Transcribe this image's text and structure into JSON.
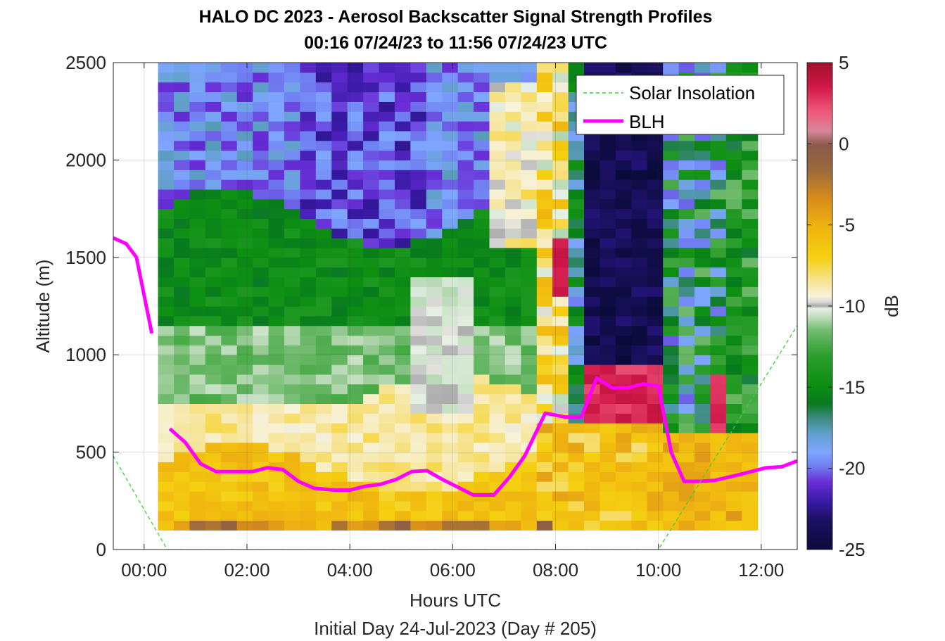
{
  "chart_data": {
    "type": "heatmap",
    "title": "HALO DC 2023 - Aerosol Backscatter Signal Strength Profiles",
    "subtitle": "00:16 07/24/23 to 11:56 07/24/23  UTC",
    "xlabel": "Hours UTC",
    "ylabel": "Altitude (m)",
    "footer": "Initial Day 24-Jul-2023 (Day # 205)",
    "xlim": [
      -0.6,
      12.7
    ],
    "ylim": [
      0,
      2500
    ],
    "x_ticks": [
      0,
      2,
      4,
      6,
      8,
      10,
      12
    ],
    "x_tick_labels": [
      "00:00",
      "02:00",
      "04:00",
      "06:00",
      "08:00",
      "10:00",
      "12:00"
    ],
    "y_ticks": [
      0,
      500,
      1000,
      1500,
      2000,
      2500
    ],
    "y_tick_labels": [
      "0",
      "500",
      "1000",
      "1500",
      "2000",
      "2500"
    ],
    "colorbar": {
      "label": "dB",
      "range": [
        -25,
        5
      ],
      "ticks": [
        5,
        0,
        -5,
        -10,
        -15,
        -20,
        -25
      ],
      "tick_labels": [
        "5",
        "0",
        "-5",
        "-10",
        "-15",
        "-20",
        "-25"
      ]
    },
    "grid": true,
    "legend": {
      "position": "top-right",
      "entries": [
        {
          "label": "Solar Insolation",
          "color": "#33d633",
          "style": "dashed"
        },
        {
          "label": "BLH",
          "color": "#ff00ff",
          "style": "solid"
        }
      ]
    },
    "heatmap": {
      "x_start": 0.27,
      "x_end": 11.93,
      "time_bins": 38,
      "y_start": 100,
      "y_end": 2500,
      "altitude_bins": 48,
      "value_units": "dB"
    },
    "series": [
      {
        "name": "BLH",
        "color": "#ff00ff",
        "x": [
          -0.6,
          -0.35,
          -0.15,
          0.15
        ],
        "y": [
          1600,
          1570,
          1500,
          1110
        ]
      },
      {
        "name": "BLH",
        "color": "#ff00ff",
        "x": [
          0.5,
          0.8,
          1.1,
          1.4,
          1.7,
          2.1,
          2.4,
          2.7,
          3.0,
          3.3,
          3.7,
          4.0,
          4.3,
          4.6,
          4.9,
          5.2,
          5.5,
          5.8,
          6.1,
          6.4,
          6.8,
          7.1,
          7.4,
          7.8,
          8.2,
          8.5,
          8.8,
          9.1,
          9.4,
          9.7,
          10.0,
          10.25,
          10.5,
          10.8,
          11.1,
          11.5,
          11.8,
          12.1,
          12.4,
          12.7
        ],
        "y": [
          620,
          550,
          440,
          400,
          400,
          400,
          420,
          410,
          350,
          315,
          305,
          305,
          325,
          335,
          360,
          400,
          405,
          360,
          320,
          280,
          280,
          370,
          480,
          700,
          680,
          680,
          880,
          830,
          830,
          850,
          840,
          500,
          350,
          350,
          355,
          380,
          400,
          420,
          425,
          455
        ]
      },
      {
        "name": "Solar Insolation",
        "color": "#33d633",
        "x": [
          -0.6,
          0.45,
          10.0,
          12.7
        ],
        "y": [
          480,
          0,
          0,
          1150
        ]
      }
    ]
  }
}
